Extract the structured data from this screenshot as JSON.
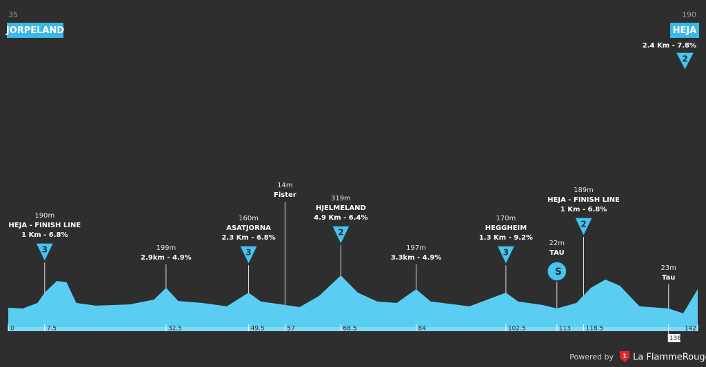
{
  "chart_data": {
    "type": "area",
    "color": "#5ccdf2",
    "start": {
      "km": "35",
      "name": "JORPELAND"
    },
    "finish": {
      "km": "190",
      "name": "HEJA",
      "climb": "2.4 Km - 7.8%",
      "category": "2"
    },
    "x": [
      0,
      3,
      6,
      7.5,
      10,
      12,
      14,
      18,
      25,
      30,
      32.5,
      35,
      40,
      45,
      49.5,
      52,
      57,
      60,
      64,
      68.5,
      72,
      76,
      80,
      84,
      87,
      95,
      102.5,
      105,
      110,
      113,
      117,
      120,
      123,
      126,
      130,
      136,
      139,
      142
    ],
    "values": [
      115,
      110,
      149,
      222,
      304,
      295,
      149,
      130,
      139,
      173,
      256,
      163,
      149,
      125,
      222,
      159,
      135,
      120,
      198,
      343,
      222,
      159,
      149,
      246,
      159,
      125,
      222,
      159,
      135,
      110,
      149,
      256,
      314,
      270,
      125,
      110,
      76,
      246
    ],
    "xlim": [
      0,
      142
    ],
    "ylim": [
      -50,
      1406
    ],
    "xticks": [
      0,
      7.5,
      32.5,
      49.5,
      57,
      68.5,
      84,
      102.5,
      113,
      118.5,
      136,
      142
    ],
    "markers": [
      {
        "x": 7.5,
        "lines": [
          "190m",
          "HEJA - FINISH LINE",
          "1 Km - 6.8%"
        ],
        "category": "3"
      },
      {
        "x": 32.5,
        "lines": [
          "199m",
          "2.9km - 4.9%"
        ]
      },
      {
        "x": 49.5,
        "lines": [
          "160m",
          "ASATJORNA",
          "2.3 Km - 6.8%"
        ],
        "category": "3"
      },
      {
        "x": 57,
        "lines": [
          "14m",
          "Fister"
        ]
      },
      {
        "x": 68.5,
        "lines": [
          "319m",
          "HJELMELAND",
          "4.9 Km - 6.4%"
        ],
        "category": "2"
      },
      {
        "x": 84,
        "lines": [
          "197m",
          "3.3km - 4.9%"
        ]
      },
      {
        "x": 102.5,
        "lines": [
          "170m",
          "HEGGHEIM",
          "1.3 Km - 9.2%"
        ],
        "category": "3"
      },
      {
        "x": 113,
        "lines": [
          "22m",
          "TAU"
        ],
        "sprint": "S"
      },
      {
        "x": 118.5,
        "lines": [
          "189m",
          "HEJA - FINISH LINE",
          "1 Km - 6.8%"
        ],
        "category": "2"
      },
      {
        "x": 136,
        "lines": [
          "23m",
          "Tau"
        ]
      }
    ],
    "footer": {
      "powered": "Powered by",
      "logo": "1",
      "brand": "La FlammeRouge"
    }
  }
}
